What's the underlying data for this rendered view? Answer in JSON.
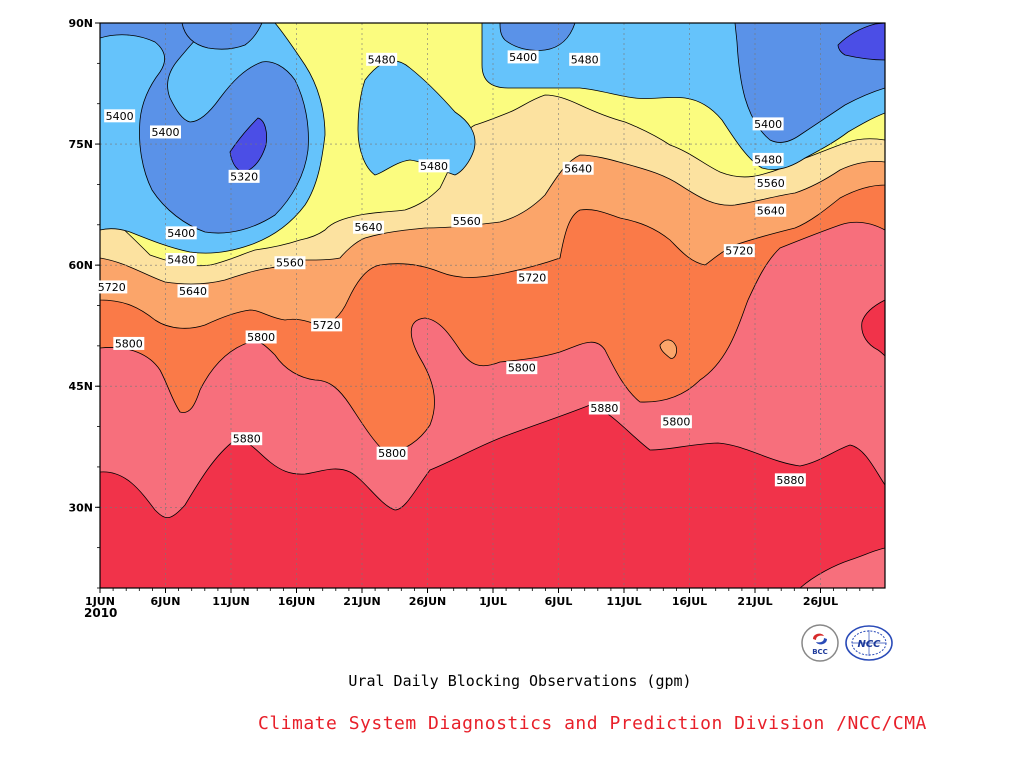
{
  "chart_data": {
    "type": "heatmap",
    "title": "Ural Daily Blocking Observations (gpm)",
    "x_tick_labels": [
      "1JUN",
      "6JUN",
      "11JUN",
      "16JUN",
      "21JUN",
      "26JUN",
      "1JUL",
      "6JUL",
      "11JUL",
      "16JUL",
      "21JUL",
      "26JUL"
    ],
    "x_start_year": "2010",
    "y_tick_labels": [
      "90N",
      "75N",
      "60N",
      "45N",
      "30N"
    ],
    "y_tick_values": [
      90,
      75,
      60,
      45,
      30
    ],
    "ylim": [
      20,
      90
    ],
    "xlim_days": [
      0,
      60
    ],
    "contour_levels": [
      5320,
      5400,
      5480,
      5560,
      5640,
      5720,
      5800,
      5880
    ],
    "level_colors": {
      "below_5320": "#4b4ee6",
      "5320_5400": "#5a92e8",
      "5400_5480": "#65c3fb",
      "5480_5560": "#fbfc7f",
      "5560_5640": "#fce2a0",
      "5640_5720": "#fba56a",
      "5720_5800": "#fa7a48",
      "5800_5880": "#f76f7c",
      "above_5880": "#f1334a"
    },
    "contour_labels": [
      {
        "text": "5400",
        "day": 1.5,
        "lat": 78.5
      },
      {
        "text": "5400",
        "day": 5,
        "lat": 76.5
      },
      {
        "text": "5320",
        "day": 11,
        "lat": 71
      },
      {
        "text": "5400",
        "day": 6.2,
        "lat": 64
      },
      {
        "text": "5480",
        "day": 6.2,
        "lat": 60.7
      },
      {
        "text": "5560",
        "day": 14.5,
        "lat": 60.3
      },
      {
        "text": "5640",
        "day": 7.1,
        "lat": 56.8
      },
      {
        "text": "5720",
        "day": 0.9,
        "lat": 57.3
      },
      {
        "text": "5800",
        "day": 2.2,
        "lat": 50.3
      },
      {
        "text": "5800",
        "day": 12.3,
        "lat": 51.1
      },
      {
        "text": "5720",
        "day": 17.3,
        "lat": 52.6
      },
      {
        "text": "5640",
        "day": 20.5,
        "lat": 64.7
      },
      {
        "text": "5480",
        "day": 21.5,
        "lat": 85.5
      },
      {
        "text": "5480",
        "day": 25.5,
        "lat": 72.3
      },
      {
        "text": "5560",
        "day": 28,
        "lat": 65.5
      },
      {
        "text": "5400",
        "day": 32.3,
        "lat": 85.8
      },
      {
        "text": "5480",
        "day": 37,
        "lat": 85.5
      },
      {
        "text": "5640",
        "day": 36.5,
        "lat": 72
      },
      {
        "text": "5720",
        "day": 33,
        "lat": 58.5
      },
      {
        "text": "5800",
        "day": 32.2,
        "lat": 47.3
      },
      {
        "text": "5880",
        "day": 38.5,
        "lat": 42.3
      },
      {
        "text": "5800",
        "day": 44,
        "lat": 40.6
      },
      {
        "text": "5800",
        "day": 22.3,
        "lat": 36.7
      },
      {
        "text": "5880",
        "day": 11.2,
        "lat": 38.5
      },
      {
        "text": "5720",
        "day": 48.8,
        "lat": 61.8
      },
      {
        "text": "5400",
        "day": 51,
        "lat": 77.5
      },
      {
        "text": "5480",
        "day": 51,
        "lat": 73.1
      },
      {
        "text": "5560",
        "day": 51.2,
        "lat": 70.2
      },
      {
        "text": "5640",
        "day": 51.2,
        "lat": 66.8
      },
      {
        "text": "5880",
        "day": 52.7,
        "lat": 33.4
      }
    ]
  },
  "footer": {
    "credit": "Climate System Diagnostics and Prediction Division /NCC/CMA",
    "logo_left": "BCC",
    "logo_right": "NCC"
  }
}
